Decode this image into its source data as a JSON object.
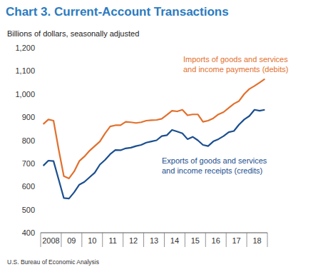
{
  "chart_data": {
    "type": "line",
    "title": "Chart 3. Current-Account Transactions",
    "ylabel": "Billions of dollars, seasonally adjusted",
    "source": "U.S. Bureau of Economic Analysis",
    "categories": [
      null,
      "2008",
      null,
      null,
      null,
      "09",
      null,
      null,
      null,
      "10",
      null,
      null,
      null,
      "11",
      null,
      null,
      null,
      "12",
      null,
      null,
      null,
      "13",
      null,
      null,
      null,
      "14",
      null,
      null,
      null,
      "15",
      null,
      null,
      null,
      "16",
      null,
      null,
      null,
      "17",
      null,
      null,
      null,
      "18",
      null,
      null
    ],
    "series": [
      {
        "name": "Imports of goods and services and income payments (debits)",
        "color": "#e2702d",
        "values": [
          870,
          890,
          885,
          760,
          645,
          635,
          665,
          710,
          730,
          755,
          775,
          795,
          830,
          860,
          865,
          865,
          880,
          878,
          875,
          878,
          885,
          887,
          888,
          893,
          910,
          928,
          925,
          932,
          908,
          912,
          912,
          880,
          885,
          895,
          912,
          922,
          940,
          958,
          970,
          1000,
          1022,
          1035,
          1050,
          1065
        ]
      },
      {
        "name": "Exports of goods and services and income receipts (credits)",
        "color": "#1b4f8f",
        "values": [
          690,
          712,
          710,
          630,
          550,
          548,
          575,
          608,
          620,
          640,
          660,
          695,
          715,
          740,
          758,
          757,
          765,
          768,
          775,
          780,
          790,
          795,
          800,
          818,
          822,
          845,
          838,
          830,
          805,
          815,
          800,
          780,
          775,
          795,
          805,
          818,
          835,
          840,
          868,
          890,
          905,
          932,
          928,
          932
        ]
      }
    ],
    "ylim": [
      400,
      1200
    ],
    "yticks": [
      400,
      500,
      600,
      700,
      800,
      900,
      {
        "value": 1000,
        "label": "1,000"
      },
      {
        "value": 1100,
        "label": "1,100"
      },
      {
        "value": 1200,
        "label": "1,200"
      }
    ],
    "grid": false
  }
}
